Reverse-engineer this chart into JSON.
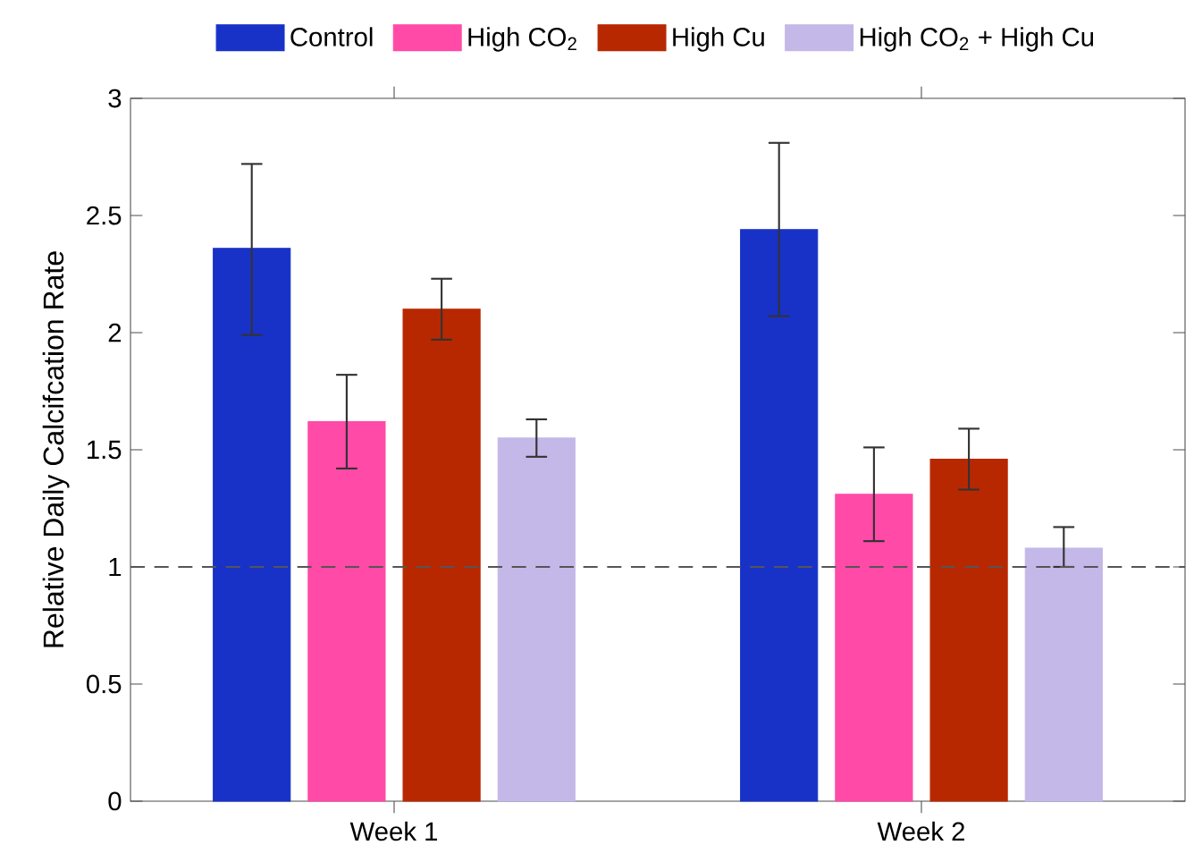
{
  "chart_data": {
    "type": "bar",
    "ylabel": "Relative Daily Calcifcation Rate",
    "categories": [
      "Week 1",
      "Week 2"
    ],
    "series": [
      {
        "name": "Control",
        "color": "#1832c8",
        "values": [
          2.36,
          2.44
        ],
        "errors": [
          [
            1.99,
            2.72
          ],
          [
            2.07,
            2.81
          ]
        ]
      },
      {
        "name": "High CO$_{2}$",
        "color": "#ff4aa8",
        "values": [
          1.62,
          1.31
        ],
        "errors": [
          [
            1.42,
            1.82
          ],
          [
            1.11,
            1.51
          ]
        ]
      },
      {
        "name": "High Cu",
        "color": "#b82800",
        "values": [
          2.1,
          1.46
        ],
        "errors": [
          [
            1.97,
            2.23
          ],
          [
            1.33,
            1.59
          ]
        ]
      },
      {
        "name": "High CO$_{2}$ + High Cu",
        "color": "#c4b8e8",
        "values": [
          1.55,
          1.08
        ],
        "errors": [
          [
            1.47,
            1.63
          ],
          [
            1.0,
            1.17
          ]
        ]
      }
    ],
    "ylim": [
      0,
      3
    ],
    "yticks": [
      0,
      0.5,
      1,
      1.5,
      2,
      2.5,
      3
    ],
    "ref_lines": [
      {
        "axis": "y",
        "value": 1,
        "color": "#555555",
        "line_style": "dashed"
      }
    ],
    "legend": "top",
    "grid": false
  }
}
